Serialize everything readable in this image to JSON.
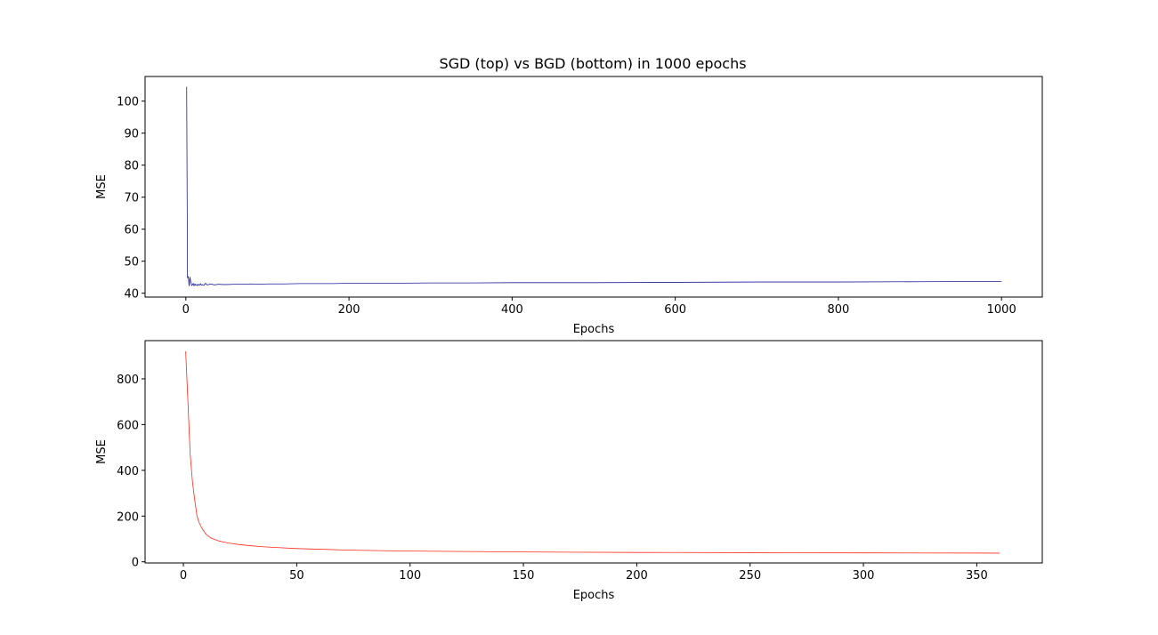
{
  "figure": {
    "title": "SGD (top) vs BGD (bottom) in 1000 epochs"
  },
  "chart_data": [
    {
      "type": "line",
      "title": "SGD (top) vs BGD (bottom) in 1000 epochs",
      "xlabel": "Epochs",
      "ylabel": "MSE",
      "xlim": [
        -50,
        1050
      ],
      "ylim": [
        38.8,
        107.7
      ],
      "xticks": [
        0,
        200,
        400,
        600,
        800,
        1000
      ],
      "yticks": [
        40,
        50,
        60,
        70,
        80,
        90,
        100
      ],
      "grid": false,
      "color": "#1f1f9a",
      "series": [
        {
          "x": [
            1,
            2,
            3,
            4,
            5,
            6,
            7,
            8,
            9,
            10,
            11,
            12,
            13,
            14,
            15,
            16,
            17,
            18,
            19,
            20,
            22,
            24,
            26,
            28,
            30,
            35,
            40,
            45,
            50,
            60,
            70,
            80,
            90,
            100,
            120,
            140,
            160,
            180,
            200,
            250,
            300,
            350,
            400,
            450,
            500,
            600,
            700,
            800,
            900,
            1000
          ],
          "values": [
            104.5,
            44.8,
            45.2,
            42.3,
            45.0,
            43.6,
            42.4,
            42.6,
            43.1,
            42.3,
            42.9,
            42.5,
            42.7,
            42.4,
            42.8,
            42.5,
            42.6,
            43.0,
            42.5,
            42.7,
            42.4,
            43.1,
            42.6,
            42.7,
            42.9,
            42.6,
            42.8,
            42.7,
            42.7,
            42.8,
            42.8,
            42.9,
            42.8,
            42.9,
            42.9,
            43.0,
            43.0,
            43.0,
            43.1,
            43.1,
            43.2,
            43.2,
            43.3,
            43.3,
            43.3,
            43.4,
            43.5,
            43.5,
            43.6,
            43.7
          ]
        }
      ]
    },
    {
      "type": "line",
      "title": "",
      "xlabel": "Epochs",
      "ylabel": "MSE",
      "xlim": [
        -16.9,
        378.9
      ],
      "ylim": [
        -5,
        967
      ],
      "xticks": [
        0,
        50,
        100,
        150,
        200,
        250,
        300,
        350
      ],
      "yticks": [
        0,
        200,
        400,
        600,
        800
      ],
      "grid": false,
      "color": "#ff2a1a",
      "series": [
        {
          "x": [
            1,
            2,
            3,
            4,
            5,
            6,
            7,
            8,
            9,
            10,
            12,
            14,
            16,
            18,
            20,
            25,
            30,
            35,
            40,
            50,
            60,
            70,
            80,
            100,
            125,
            150,
            200,
            250,
            300,
            360
          ],
          "values": [
            920,
            700,
            470,
            350,
            270,
            200,
            170,
            150,
            135,
            120,
            105,
            97,
            90,
            86,
            82,
            75,
            70,
            66,
            63,
            58,
            55,
            52,
            50,
            47,
            45,
            43,
            41,
            40,
            39,
            38
          ]
        }
      ]
    }
  ]
}
